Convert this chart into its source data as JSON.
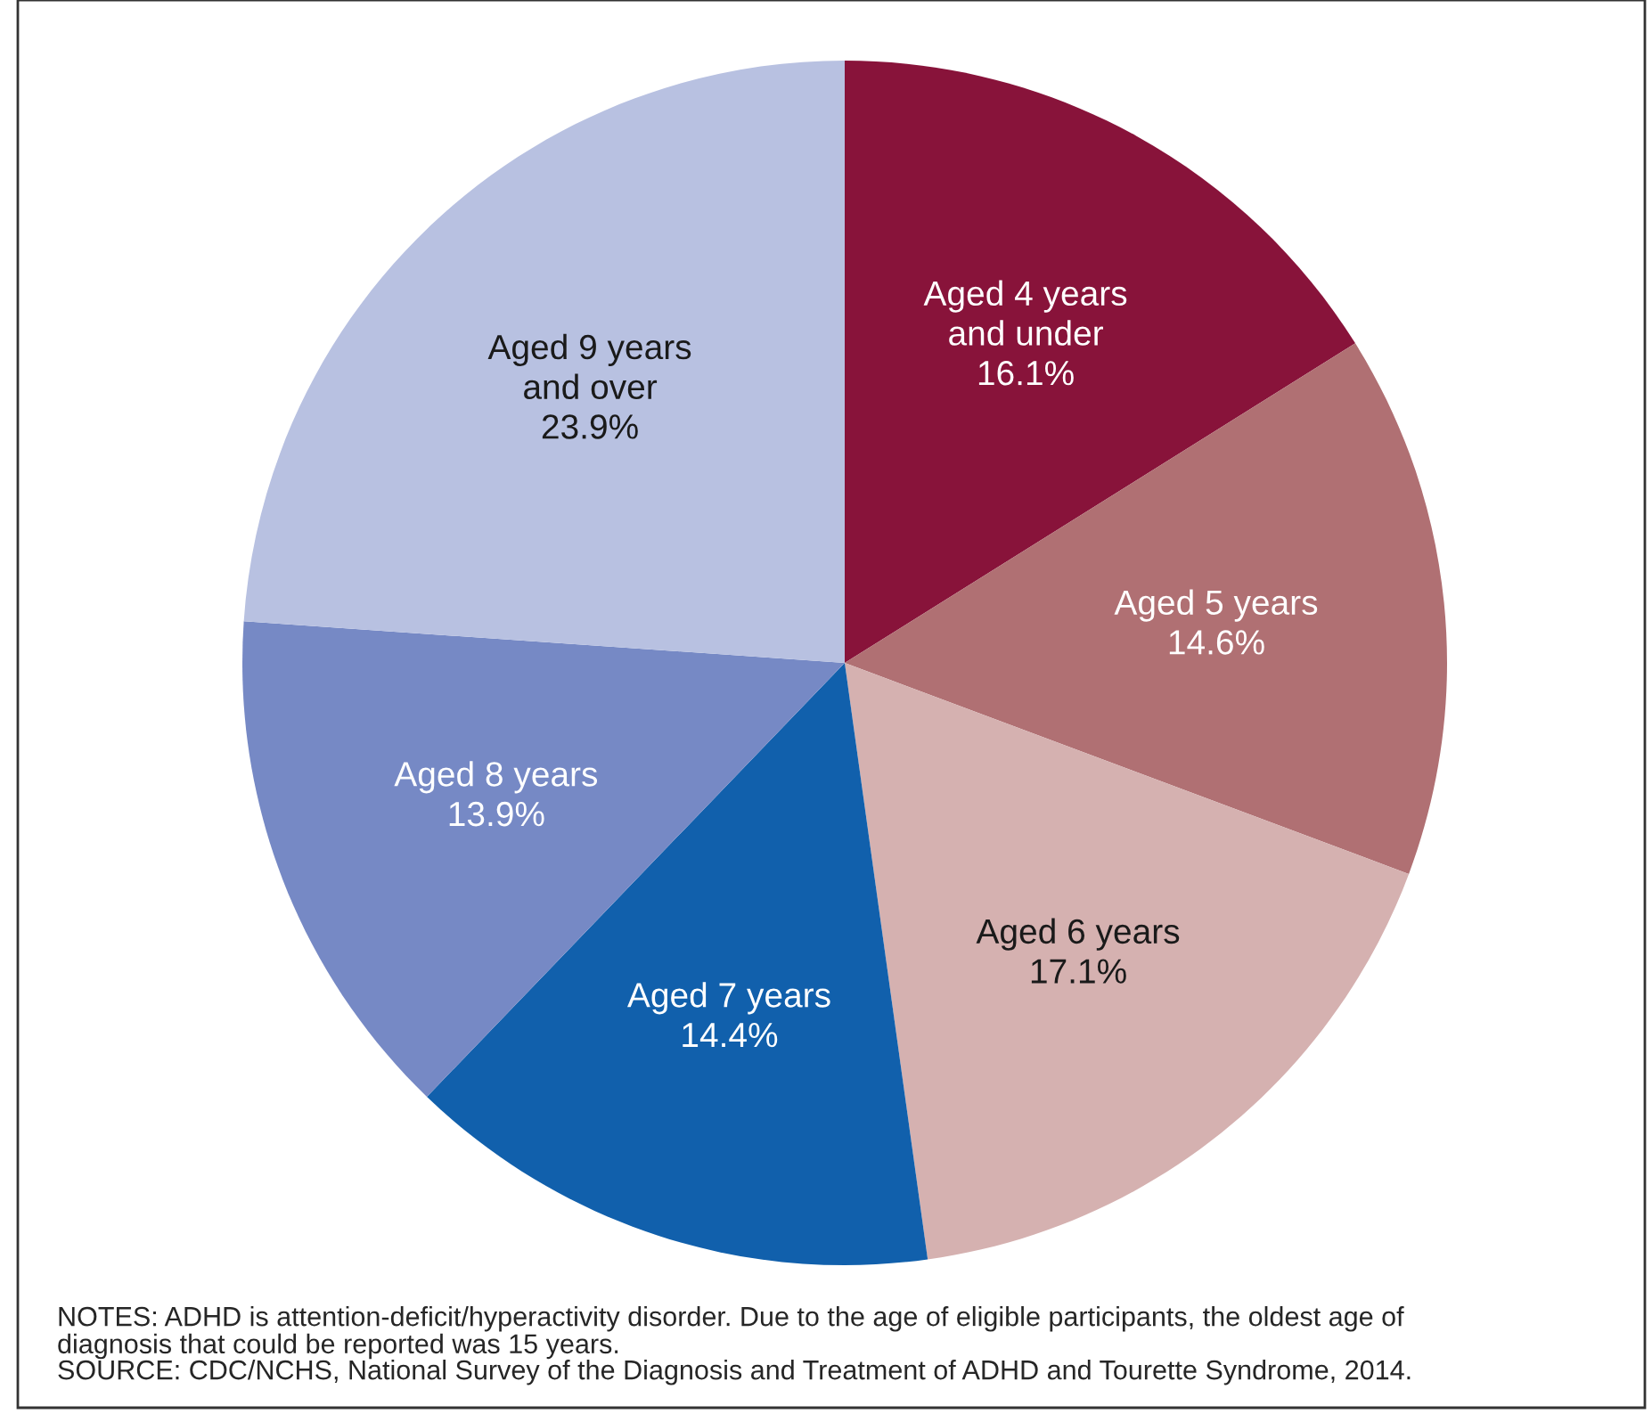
{
  "chart_data": {
    "type": "pie",
    "categories": [
      "Aged 4 years\nand under",
      "Aged 5 years",
      "Aged 6 years",
      "Aged 7 years",
      "Aged 8 years",
      "Aged 9 years\nand over"
    ],
    "values": [
      16.1,
      14.6,
      17.1,
      14.4,
      13.9,
      23.9
    ],
    "colors": [
      "#88133a",
      "#b07073",
      "#d5b1b0",
      "#1160ac",
      "#7689c5",
      "#b8c1e1"
    ],
    "value_labels": [
      "16.1%",
      "14.6%",
      "17.1%",
      "14.4%",
      "13.9%",
      "23.9%"
    ],
    "annotations": [
      "NOTES: ADHD is attention-deficit/hyperactivity disorder. Due to the age of eligible participants, the oldest age of\ndiagnosis that could be reported was 15 years.",
      "SOURCE: CDC/NCHS, National Survey of the Diagnosis and Treatment of ADHD and Tourette Syndrome, 2014."
    ]
  }
}
